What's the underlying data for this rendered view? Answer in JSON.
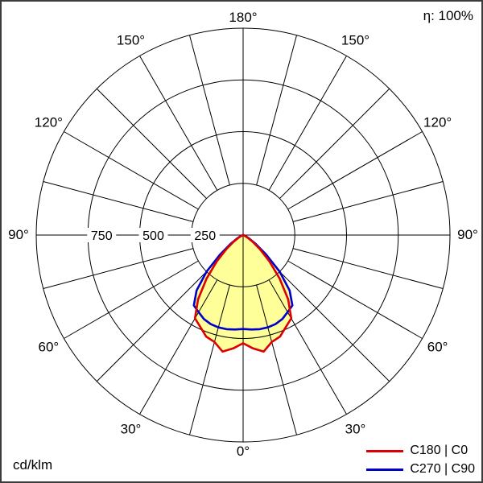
{
  "window": {
    "background": "#ffffff",
    "border_color": "#3c3c3c"
  },
  "chart_data": {
    "type": "polar",
    "variant": "photometric-light-distribution-curve",
    "title": "",
    "unit_label": "cd/klm",
    "efficiency_label": "η: 100%",
    "radial_ticks": [
      250,
      500,
      750
    ],
    "radial_max": 1000,
    "angle_grid_step_deg": 15,
    "angle_label_step_deg": 30,
    "angle_labels_deg": [
      0,
      30,
      60,
      90,
      120,
      150,
      180
    ],
    "grid_color": "#000000",
    "fill_color": "#ffff99",
    "legend_position": "bottom-right",
    "gamma_deg": [
      0,
      5,
      10,
      15,
      20,
      25,
      30,
      35,
      40,
      45,
      50,
      55,
      60,
      65,
      70,
      75,
      80,
      85,
      90
    ],
    "series": [
      {
        "name": "C180 | C0",
        "color": "#dd0000",
        "values": [
          523,
          550,
          572,
          535,
          522,
          490,
          465,
          380,
          275,
          180,
          105,
          55,
          25,
          10,
          4,
          0,
          0,
          0,
          0
        ]
      },
      {
        "name": "C270 | C90",
        "color": "#0000cc",
        "values": [
          454,
          458,
          462,
          462,
          458,
          448,
          430,
          415,
          350,
          250,
          145,
          75,
          35,
          15,
          5,
          0,
          0,
          0,
          0
        ]
      }
    ]
  }
}
